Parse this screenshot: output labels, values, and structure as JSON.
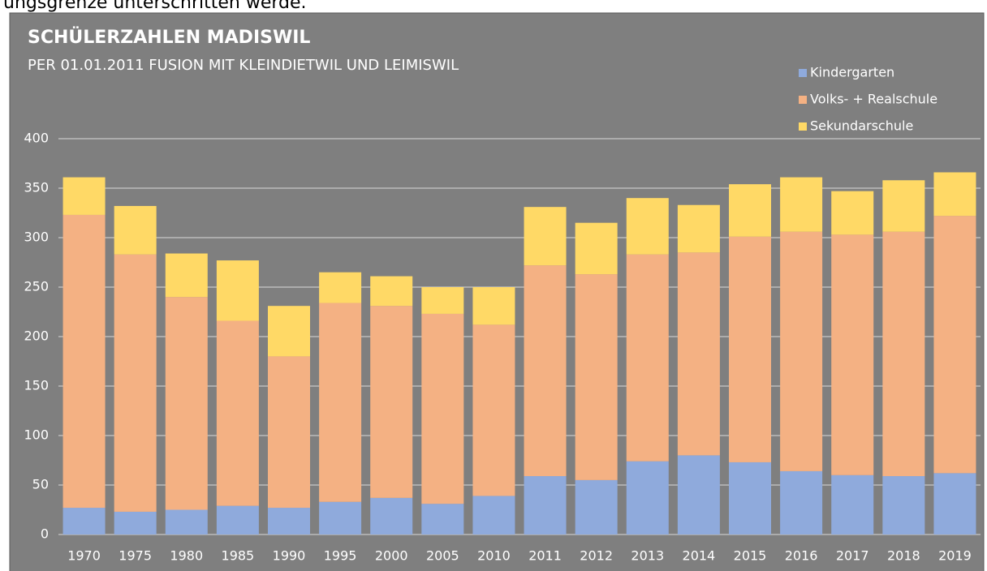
{
  "header_text": "ungsgrenze unterschritten werde.",
  "chart_data": {
    "type": "stacked_bar",
    "title": "SCHÜLERZAHLEN MADISWIL",
    "subtitle": "PER 01.01.2011 FUSION MIT KLEINDIETWIL UND LEIMISWIL",
    "categories": [
      "1970",
      "1975",
      "1980",
      "1985",
      "1990",
      "1995",
      "2000",
      "2005",
      "2010",
      "2011",
      "2012",
      "2013",
      "2014",
      "2015",
      "2016",
      "2017",
      "2018",
      "2019"
    ],
    "series": [
      {
        "name": "Kindergarten",
        "color": "#8faadc",
        "values": [
          27,
          23,
          25,
          29,
          27,
          33,
          37,
          31,
          39,
          59,
          55,
          74,
          80,
          73,
          64,
          60,
          59,
          62
        ]
      },
      {
        "name": "Volks- + Realschule",
        "color": "#f4b183",
        "values": [
          296,
          260,
          215,
          187,
          153,
          201,
          194,
          192,
          173,
          213,
          208,
          209,
          205,
          228,
          242,
          243,
          247,
          260
        ]
      },
      {
        "name": "Sekundarschule",
        "color": "#ffd966",
        "values": [
          38,
          49,
          44,
          61,
          51,
          31,
          30,
          27,
          38,
          59,
          52,
          57,
          48,
          53,
          55,
          44,
          52,
          44
        ]
      }
    ],
    "ylim": [
      0,
      400
    ],
    "yticks": [
      0,
      50,
      100,
      150,
      200,
      250,
      300,
      350,
      400
    ],
    "grid": true,
    "legend": "top-right"
  }
}
